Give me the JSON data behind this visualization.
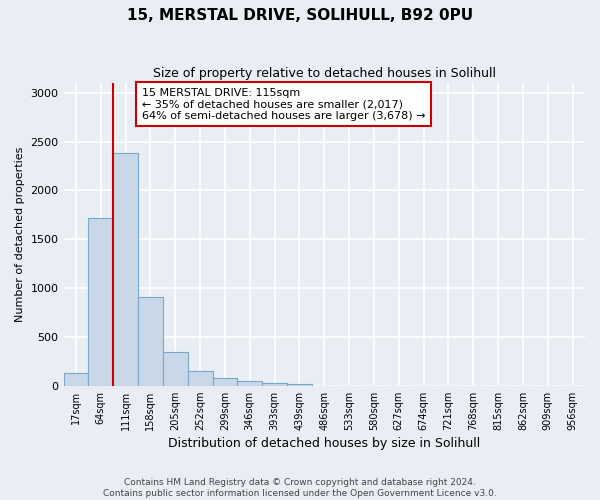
{
  "title": "15, MERSTAL DRIVE, SOLIHULL, B92 0PU",
  "subtitle": "Size of property relative to detached houses in Solihull",
  "xlabel": "Distribution of detached houses by size in Solihull",
  "ylabel": "Number of detached properties",
  "bar_values": [
    125,
    1720,
    2380,
    910,
    350,
    155,
    80,
    45,
    30,
    20,
    0,
    0,
    0,
    0,
    0,
    0,
    0,
    0,
    0,
    0,
    0
  ],
  "bar_labels": [
    "17sqm",
    "64sqm",
    "111sqm",
    "158sqm",
    "205sqm",
    "252sqm",
    "299sqm",
    "346sqm",
    "393sqm",
    "439sqm",
    "486sqm",
    "533sqm",
    "580sqm",
    "627sqm",
    "674sqm",
    "721sqm",
    "768sqm",
    "815sqm",
    "862sqm",
    "909sqm",
    "956sqm"
  ],
  "bar_color": "#c8d8e8",
  "bar_edge_color": "#7aa8c8",
  "vline_x": 1.5,
  "vline_color": "#cc0000",
  "annotation_text": "15 MERSTAL DRIVE: 115sqm\n← 35% of detached houses are smaller (2,017)\n64% of semi-detached houses are larger (3,678) →",
  "annotation_box_facecolor": "#ffffff",
  "annotation_box_edgecolor": "#cc0000",
  "ylim": [
    0,
    3100
  ],
  "yticks": [
    0,
    500,
    1000,
    1500,
    2000,
    2500,
    3000
  ],
  "footer": "Contains HM Land Registry data © Crown copyright and database right 2024.\nContains public sector information licensed under the Open Government Licence v3.0.",
  "bg_color": "#e8eef4",
  "grid_color": "#ffffff",
  "title_fontsize": 11,
  "subtitle_fontsize": 9,
  "ylabel_fontsize": 8,
  "xlabel_fontsize": 9,
  "tick_fontsize": 7,
  "annotation_fontsize": 8,
  "footer_fontsize": 6.5
}
